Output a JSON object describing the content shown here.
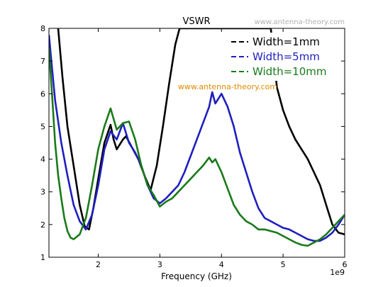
{
  "chart_data": {
    "type": "line",
    "title": "VSWR",
    "xlabel": "Frequency (GHz)",
    "ylabel": "",
    "x_offset_label": "1e9",
    "xlim": [
      1.2,
      6.0
    ],
    "ylim": [
      1,
      8
    ],
    "xticks": [
      2,
      3,
      4,
      5,
      6
    ],
    "xtick_labels": [
      "2",
      "3",
      "4",
      "5",
      "6"
    ],
    "yticks": [
      1,
      2,
      3,
      4,
      5,
      6,
      7,
      8
    ],
    "ytick_labels": [
      "1",
      "2",
      "3",
      "4",
      "5",
      "6",
      "7",
      "8"
    ],
    "grid": false,
    "legend_position": "top-right",
    "annotations": [
      "www.antenna-theory.com",
      "www.antenna-theory.com"
    ],
    "series": [
      {
        "name": "Width=1mm",
        "color": "#000000",
        "points": [
          [
            1.35,
            8.0
          ],
          [
            1.42,
            6.5
          ],
          [
            1.5,
            5.0
          ],
          [
            1.6,
            3.8
          ],
          [
            1.7,
            2.6
          ],
          [
            1.78,
            1.95
          ],
          [
            1.85,
            1.85
          ],
          [
            1.92,
            2.5
          ],
          [
            2.0,
            3.4
          ],
          [
            2.1,
            4.5
          ],
          [
            2.2,
            5.05
          ],
          [
            2.25,
            4.6
          ],
          [
            2.3,
            4.3
          ],
          [
            2.4,
            4.6
          ],
          [
            2.45,
            4.7
          ],
          [
            2.55,
            4.35
          ],
          [
            2.65,
            4.0
          ],
          [
            2.75,
            3.5
          ],
          [
            2.85,
            3.05
          ],
          [
            2.95,
            3.8
          ],
          [
            3.05,
            5.0
          ],
          [
            3.15,
            6.3
          ],
          [
            3.25,
            7.5
          ],
          [
            3.32,
            8.0
          ],
          [
            4.8,
            8.0
          ],
          [
            4.9,
            6.2
          ],
          [
            5.0,
            5.5
          ],
          [
            5.1,
            5.0
          ],
          [
            5.2,
            4.6
          ],
          [
            5.3,
            4.3
          ],
          [
            5.4,
            4.0
          ],
          [
            5.5,
            3.6
          ],
          [
            5.6,
            3.2
          ],
          [
            5.7,
            2.6
          ],
          [
            5.8,
            2.0
          ],
          [
            5.9,
            1.75
          ],
          [
            6.0,
            1.7
          ]
        ]
      },
      {
        "name": "Width=5mm",
        "color": "#1f1fbf",
        "points": [
          [
            1.2,
            7.8
          ],
          [
            1.25,
            6.8
          ],
          [
            1.3,
            5.8
          ],
          [
            1.4,
            4.5
          ],
          [
            1.5,
            3.5
          ],
          [
            1.6,
            2.6
          ],
          [
            1.7,
            2.1
          ],
          [
            1.8,
            1.85
          ],
          [
            1.9,
            2.3
          ],
          [
            2.0,
            3.2
          ],
          [
            2.1,
            4.3
          ],
          [
            2.2,
            4.85
          ],
          [
            2.3,
            4.6
          ],
          [
            2.4,
            5.1
          ],
          [
            2.5,
            4.5
          ],
          [
            2.6,
            4.2
          ],
          [
            2.7,
            3.8
          ],
          [
            2.8,
            3.2
          ],
          [
            2.9,
            2.8
          ],
          [
            3.0,
            2.65
          ],
          [
            3.1,
            2.8
          ],
          [
            3.2,
            3.0
          ],
          [
            3.3,
            3.2
          ],
          [
            3.4,
            3.6
          ],
          [
            3.5,
            4.1
          ],
          [
            3.6,
            4.6
          ],
          [
            3.7,
            5.1
          ],
          [
            3.8,
            5.6
          ],
          [
            3.85,
            6.05
          ],
          [
            3.9,
            5.7
          ],
          [
            4.0,
            6.0
          ],
          [
            4.1,
            5.6
          ],
          [
            4.2,
            5.0
          ],
          [
            4.3,
            4.2
          ],
          [
            4.4,
            3.6
          ],
          [
            4.5,
            3.0
          ],
          [
            4.6,
            2.5
          ],
          [
            4.7,
            2.2
          ],
          [
            4.8,
            2.1
          ],
          [
            4.9,
            2.0
          ],
          [
            5.0,
            1.9
          ],
          [
            5.1,
            1.85
          ],
          [
            5.2,
            1.75
          ],
          [
            5.3,
            1.65
          ],
          [
            5.4,
            1.55
          ],
          [
            5.5,
            1.5
          ],
          [
            5.6,
            1.5
          ],
          [
            5.7,
            1.6
          ],
          [
            5.8,
            1.75
          ],
          [
            5.9,
            2.0
          ],
          [
            6.0,
            2.3
          ]
        ]
      },
      {
        "name": "Width=10mm",
        "color": "#1a7a1a",
        "points": [
          [
            1.2,
            7.4
          ],
          [
            1.25,
            6.0
          ],
          [
            1.3,
            4.5
          ],
          [
            1.35,
            3.5
          ],
          [
            1.4,
            2.8
          ],
          [
            1.45,
            2.2
          ],
          [
            1.5,
            1.8
          ],
          [
            1.55,
            1.6
          ],
          [
            1.6,
            1.55
          ],
          [
            1.7,
            1.7
          ],
          [
            1.8,
            2.2
          ],
          [
            1.9,
            3.2
          ],
          [
            2.0,
            4.3
          ],
          [
            2.1,
            5.0
          ],
          [
            2.2,
            5.55
          ],
          [
            2.3,
            4.9
          ],
          [
            2.4,
            5.1
          ],
          [
            2.5,
            5.15
          ],
          [
            2.6,
            4.6
          ],
          [
            2.7,
            3.8
          ],
          [
            2.8,
            3.2
          ],
          [
            2.9,
            2.9
          ],
          [
            3.0,
            2.55
          ],
          [
            3.1,
            2.7
          ],
          [
            3.2,
            2.8
          ],
          [
            3.3,
            3.0
          ],
          [
            3.4,
            3.2
          ],
          [
            3.5,
            3.4
          ],
          [
            3.6,
            3.6
          ],
          [
            3.7,
            3.8
          ],
          [
            3.8,
            4.05
          ],
          [
            3.85,
            3.9
          ],
          [
            3.9,
            4.0
          ],
          [
            4.0,
            3.6
          ],
          [
            4.1,
            3.1
          ],
          [
            4.2,
            2.6
          ],
          [
            4.3,
            2.3
          ],
          [
            4.4,
            2.1
          ],
          [
            4.5,
            2.0
          ],
          [
            4.6,
            1.85
          ],
          [
            4.7,
            1.85
          ],
          [
            4.8,
            1.8
          ],
          [
            4.9,
            1.75
          ],
          [
            5.0,
            1.65
          ],
          [
            5.1,
            1.55
          ],
          [
            5.2,
            1.45
          ],
          [
            5.3,
            1.38
          ],
          [
            5.4,
            1.35
          ],
          [
            5.5,
            1.45
          ],
          [
            5.6,
            1.55
          ],
          [
            5.7,
            1.7
          ],
          [
            5.8,
            1.9
          ],
          [
            5.9,
            2.1
          ],
          [
            6.0,
            2.3
          ]
        ]
      }
    ]
  }
}
